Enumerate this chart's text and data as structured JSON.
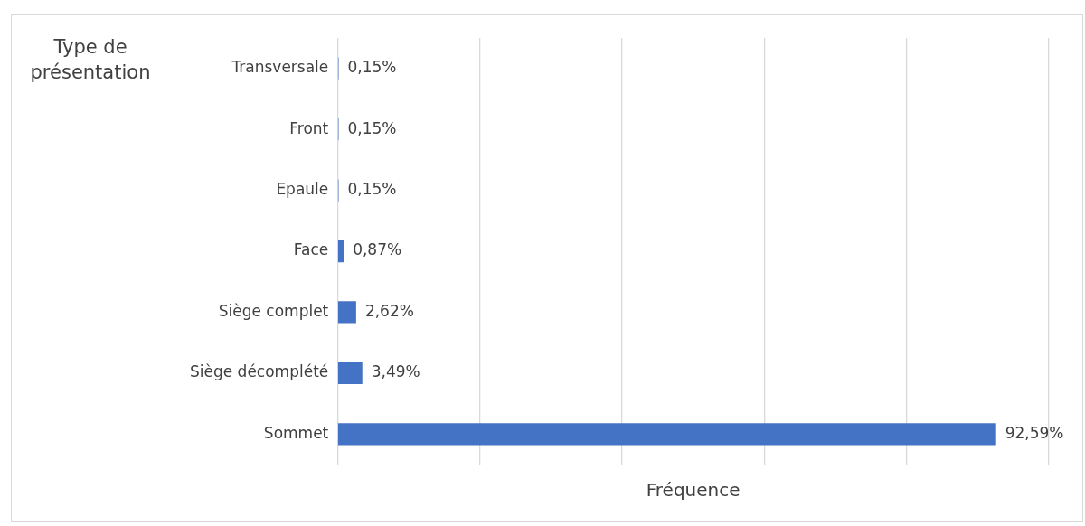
{
  "chart_data": {
    "type": "bar",
    "orientation": "horizontal",
    "xlabel": "Fréquence",
    "ylabel": "Type de présentation",
    "categories": [
      "Transversale",
      "Front",
      "Epaule",
      "Face",
      "Siège complet",
      "Siège décomplété",
      "Sommet"
    ],
    "values": [
      0.15,
      0.15,
      0.15,
      0.87,
      2.62,
      3.49,
      92.59
    ],
    "value_labels": [
      "0,15%",
      "0,15%",
      "0,15%",
      "0,87%",
      "2,62%",
      "3,49%",
      "92,59%"
    ],
    "color": "#4472c4",
    "xlim": [
      0,
      100
    ],
    "xticks": [
      {
        "value": 0,
        "label": null
      },
      {
        "value": 20,
        "label": null
      },
      {
        "value": 40,
        "label": null
      },
      {
        "value": 60,
        "label": null
      },
      {
        "value": 80,
        "label": null
      },
      {
        "value": 100,
        "label": null
      }
    ],
    "tick_labels": "y",
    "grid": "x",
    "legend": false
  }
}
